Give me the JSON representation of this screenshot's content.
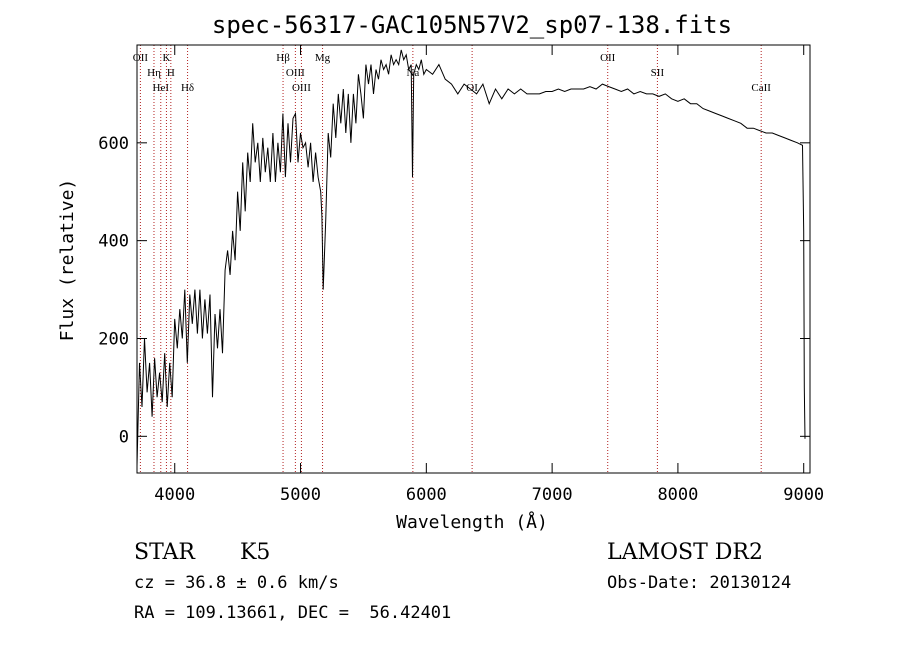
{
  "chart_data": {
    "type": "line",
    "title": "spec-56317-GAC105N57V2_sp07-138.fits",
    "xlabel": "Wavelength (Å)",
    "ylabel": "Flux (relative)",
    "xlim": [
      3700,
      9050
    ],
    "ylim": [
      -75,
      800
    ],
    "x_ticks": [
      4000,
      5000,
      6000,
      7000,
      8000,
      9000
    ],
    "y_ticks": [
      0,
      200,
      400,
      600
    ],
    "grid": false,
    "series": [
      {
        "color": "#000000",
        "points": [
          [
            3700,
            -60
          ],
          [
            3720,
            150
          ],
          [
            3740,
            60
          ],
          [
            3760,
            200
          ],
          [
            3780,
            90
          ],
          [
            3800,
            150
          ],
          [
            3820,
            40
          ],
          [
            3840,
            160
          ],
          [
            3860,
            80
          ],
          [
            3880,
            130
          ],
          [
            3900,
            70
          ],
          [
            3920,
            170
          ],
          [
            3940,
            60
          ],
          [
            3960,
            150
          ],
          [
            3980,
            80
          ],
          [
            4000,
            240
          ],
          [
            4020,
            180
          ],
          [
            4040,
            260
          ],
          [
            4060,
            200
          ],
          [
            4080,
            300
          ],
          [
            4100,
            150
          ],
          [
            4120,
            290
          ],
          [
            4140,
            230
          ],
          [
            4160,
            300
          ],
          [
            4180,
            210
          ],
          [
            4200,
            300
          ],
          [
            4220,
            200
          ],
          [
            4240,
            280
          ],
          [
            4260,
            210
          ],
          [
            4280,
            290
          ],
          [
            4300,
            80
          ],
          [
            4320,
            250
          ],
          [
            4340,
            180
          ],
          [
            4360,
            260
          ],
          [
            4380,
            170
          ],
          [
            4400,
            340
          ],
          [
            4420,
            380
          ],
          [
            4440,
            330
          ],
          [
            4460,
            420
          ],
          [
            4480,
            360
          ],
          [
            4500,
            500
          ],
          [
            4520,
            420
          ],
          [
            4540,
            560
          ],
          [
            4560,
            460
          ],
          [
            4580,
            580
          ],
          [
            4600,
            520
          ],
          [
            4620,
            640
          ],
          [
            4640,
            560
          ],
          [
            4660,
            600
          ],
          [
            4680,
            520
          ],
          [
            4700,
            610
          ],
          [
            4720,
            540
          ],
          [
            4740,
            590
          ],
          [
            4760,
            520
          ],
          [
            4780,
            620
          ],
          [
            4800,
            520
          ],
          [
            4820,
            600
          ],
          [
            4840,
            540
          ],
          [
            4860,
            660
          ],
          [
            4880,
            530
          ],
          [
            4900,
            640
          ],
          [
            4920,
            560
          ],
          [
            4940,
            650
          ],
          [
            4960,
            660
          ],
          [
            4980,
            560
          ],
          [
            5000,
            620
          ],
          [
            5020,
            590
          ],
          [
            5040,
            600
          ],
          [
            5060,
            550
          ],
          [
            5080,
            600
          ],
          [
            5100,
            520
          ],
          [
            5120,
            580
          ],
          [
            5140,
            530
          ],
          [
            5160,
            500
          ],
          [
            5170,
            450
          ],
          [
            5180,
            300
          ],
          [
            5200,
            440
          ],
          [
            5220,
            620
          ],
          [
            5240,
            570
          ],
          [
            5260,
            680
          ],
          [
            5280,
            610
          ],
          [
            5300,
            700
          ],
          [
            5320,
            640
          ],
          [
            5340,
            710
          ],
          [
            5360,
            620
          ],
          [
            5380,
            700
          ],
          [
            5400,
            600
          ],
          [
            5420,
            700
          ],
          [
            5440,
            640
          ],
          [
            5460,
            740
          ],
          [
            5480,
            700
          ],
          [
            5500,
            650
          ],
          [
            5520,
            760
          ],
          [
            5540,
            720
          ],
          [
            5560,
            760
          ],
          [
            5580,
            700
          ],
          [
            5600,
            750
          ],
          [
            5620,
            730
          ],
          [
            5640,
            770
          ],
          [
            5660,
            750
          ],
          [
            5680,
            760
          ],
          [
            5700,
            740
          ],
          [
            5720,
            780
          ],
          [
            5740,
            760
          ],
          [
            5760,
            770
          ],
          [
            5780,
            760
          ],
          [
            5800,
            790
          ],
          [
            5820,
            770
          ],
          [
            5840,
            780
          ],
          [
            5860,
            750
          ],
          [
            5880,
            760
          ],
          [
            5890,
            530
          ],
          [
            5900,
            740
          ],
          [
            5920,
            760
          ],
          [
            5940,
            750
          ],
          [
            5960,
            770
          ],
          [
            5980,
            740
          ],
          [
            6000,
            750
          ],
          [
            6050,
            740
          ],
          [
            6100,
            760
          ],
          [
            6150,
            730
          ],
          [
            6200,
            720
          ],
          [
            6250,
            700
          ],
          [
            6300,
            720
          ],
          [
            6350,
            710
          ],
          [
            6400,
            700
          ],
          [
            6450,
            720
          ],
          [
            6500,
            680
          ],
          [
            6550,
            710
          ],
          [
            6600,
            690
          ],
          [
            6650,
            710
          ],
          [
            6700,
            700
          ],
          [
            6750,
            710
          ],
          [
            6800,
            700
          ],
          [
            6850,
            700
          ],
          [
            6900,
            700
          ],
          [
            6950,
            705
          ],
          [
            7000,
            705
          ],
          [
            7050,
            710
          ],
          [
            7100,
            705
          ],
          [
            7150,
            710
          ],
          [
            7200,
            710
          ],
          [
            7250,
            710
          ],
          [
            7300,
            715
          ],
          [
            7350,
            710
          ],
          [
            7400,
            720
          ],
          [
            7450,
            715
          ],
          [
            7500,
            710
          ],
          [
            7550,
            705
          ],
          [
            7600,
            710
          ],
          [
            7650,
            700
          ],
          [
            7700,
            705
          ],
          [
            7750,
            700
          ],
          [
            7800,
            700
          ],
          [
            7850,
            695
          ],
          [
            7900,
            700
          ],
          [
            7950,
            690
          ],
          [
            8000,
            685
          ],
          [
            8050,
            690
          ],
          [
            8100,
            680
          ],
          [
            8150,
            680
          ],
          [
            8200,
            670
          ],
          [
            8250,
            665
          ],
          [
            8300,
            660
          ],
          [
            8350,
            655
          ],
          [
            8400,
            650
          ],
          [
            8450,
            645
          ],
          [
            8500,
            640
          ],
          [
            8550,
            630
          ],
          [
            8600,
            630
          ],
          [
            8650,
            625
          ],
          [
            8700,
            620
          ],
          [
            8750,
            620
          ],
          [
            8800,
            615
          ],
          [
            8850,
            610
          ],
          [
            8900,
            605
          ],
          [
            8950,
            600
          ],
          [
            8990,
            595
          ],
          [
            9000,
            420
          ],
          [
            9005,
            100
          ],
          [
            9010,
            -5
          ]
        ]
      }
    ],
    "lines": [
      {
        "x": 3727,
        "label": "OII"
      },
      {
        "x": 3835,
        "label": "Hη"
      },
      {
        "x": 3889,
        "label": "HeI"
      },
      {
        "x": 3934,
        "label": "K"
      },
      {
        "x": 3969,
        "label": "H"
      },
      {
        "x": 4102,
        "label": "Hδ"
      },
      {
        "x": 4861,
        "label": "Hβ"
      },
      {
        "x": 4959,
        "label": "OIII"
      },
      {
        "x": 5007,
        "label": "OIII"
      },
      {
        "x": 5175,
        "label": "Mg"
      },
      {
        "x": 5893,
        "label": "Na"
      },
      {
        "x": 6364,
        "label": "OI"
      },
      {
        "x": 7442,
        "label": "OII"
      },
      {
        "x": 7837,
        "label": "SII"
      },
      {
        "x": 8662,
        "label": "CaII"
      }
    ],
    "line_color": "#b22222"
  },
  "footer": {
    "class_label": "STAR",
    "subclass": "K5",
    "release": "LAMOST DR2",
    "cz": "cz = 36.8 ± 0.6 km/s",
    "obs_date": "Obs-Date: 20130124",
    "coords": "RA = 109.13661, DEC =  56.42401"
  }
}
